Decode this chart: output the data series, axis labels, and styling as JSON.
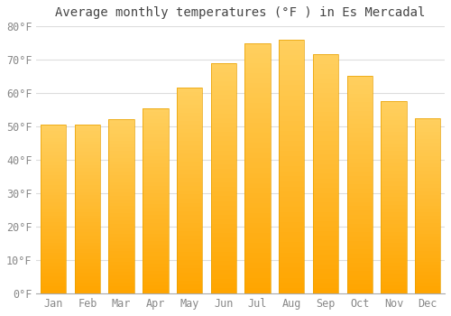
{
  "title": "Average monthly temperatures (°F ) in Es Mercadal",
  "months": [
    "Jan",
    "Feb",
    "Mar",
    "Apr",
    "May",
    "Jun",
    "Jul",
    "Aug",
    "Sep",
    "Oct",
    "Nov",
    "Dec"
  ],
  "values": [
    50.5,
    50.5,
    52,
    55.5,
    61.5,
    69,
    75,
    76,
    71.5,
    65,
    57.5,
    52.5
  ],
  "bar_color_top": "#FFD060",
  "bar_color_bottom": "#FFA500",
  "bar_color_edge": "#E8A000",
  "background_color": "#FFFFFF",
  "plot_bg_color": "#FFFFFF",
  "grid_color": "#DDDDDD",
  "title_color": "#444444",
  "tick_color": "#888888",
  "ylim": [
    0,
    80
  ],
  "yticks": [
    0,
    10,
    20,
    30,
    40,
    50,
    60,
    70,
    80
  ],
  "title_fontsize": 10,
  "tick_fontsize": 8.5,
  "bar_width": 0.75
}
